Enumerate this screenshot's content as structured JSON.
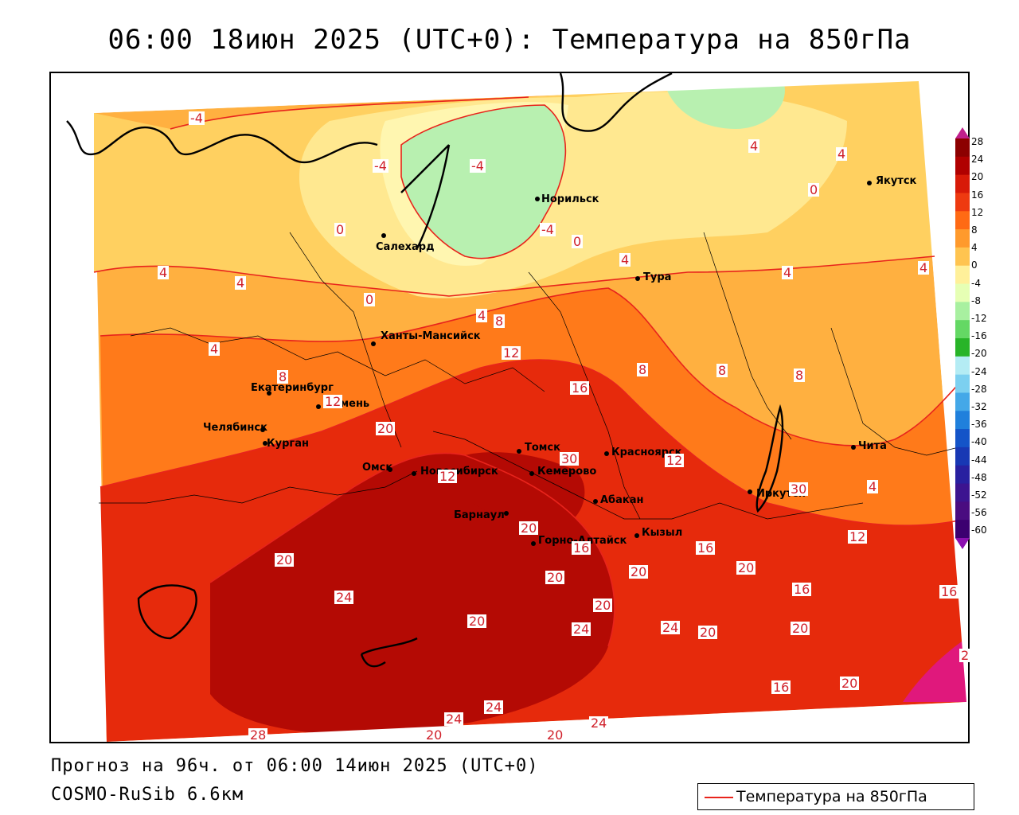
{
  "title": "06:00 18июн 2025 (UTC+0): Температура на 850гПа",
  "forecast_line": "Прогноз на 96ч. от 06:00 14июн 2025 (UTC+0)",
  "model_line": "COSMO-RuSib 6.6км",
  "legend_label": "Температура на 850гПа",
  "colors": {
    "contour": "#e8241c",
    "coast": "#000000",
    "scale": [
      "#8c0000",
      "#b00000",
      "#d81a08",
      "#ee3a10",
      "#ff6a14",
      "#ff9a2c",
      "#ffc450",
      "#fff09a",
      "#e6ffb4",
      "#a8f0a0",
      "#64d864",
      "#28b428",
      "#b4ecf4",
      "#7cd0f0",
      "#44a8e8",
      "#2080dc",
      "#1454c8",
      "#1838b4",
      "#2820a0",
      "#3c1490",
      "#4a0c80",
      "#3c0070"
    ]
  },
  "scale_labels": [
    "28",
    "24",
    "20",
    "16",
    "12",
    "8",
    "4",
    "0",
    "-4",
    "-8",
    "-12",
    "-16",
    "-20",
    "-24",
    "-28",
    "-32",
    "-36",
    "-40",
    "-44",
    "-48",
    "-52",
    "-56",
    "-60"
  ],
  "cities": [
    {
      "name": "Норильск"
    },
    {
      "name": "Салехард"
    },
    {
      "name": "Якутск"
    },
    {
      "name": "Тура"
    },
    {
      "name": "Ханты-Мансийск"
    },
    {
      "name": "Екатеринбург"
    },
    {
      "name": "Тюмень"
    },
    {
      "name": "Челябинск"
    },
    {
      "name": "Курган"
    },
    {
      "name": "Омск"
    },
    {
      "name": "Новосибирск"
    },
    {
      "name": "Томск"
    },
    {
      "name": "Кемерово"
    },
    {
      "name": "Красноярск"
    },
    {
      "name": "Барнаул"
    },
    {
      "name": "Абакан"
    },
    {
      "name": "Горно-Алтайск"
    },
    {
      "name": "Кызыл"
    },
    {
      "name": "Иркутск"
    },
    {
      "name": "Чита"
    }
  ],
  "isotherm_labels": [
    "-4",
    "-4",
    "-4",
    "-4",
    "4",
    "4",
    "0",
    "0",
    "0",
    "0",
    "4",
    "4",
    "4",
    "4",
    "4",
    "4",
    "8",
    "4",
    "8",
    "12",
    "16",
    "12",
    "8",
    "8",
    "8",
    "4",
    "20",
    "12",
    "12",
    "30",
    "16",
    "20",
    "30",
    "16",
    "12",
    "20",
    "24",
    "20",
    "20",
    "24",
    "24",
    "20",
    "20",
    "16",
    "20",
    "20",
    "16",
    "24",
    "16",
    "20",
    "24",
    "24",
    "20",
    "20",
    "20",
    "28",
    "2"
  ]
}
